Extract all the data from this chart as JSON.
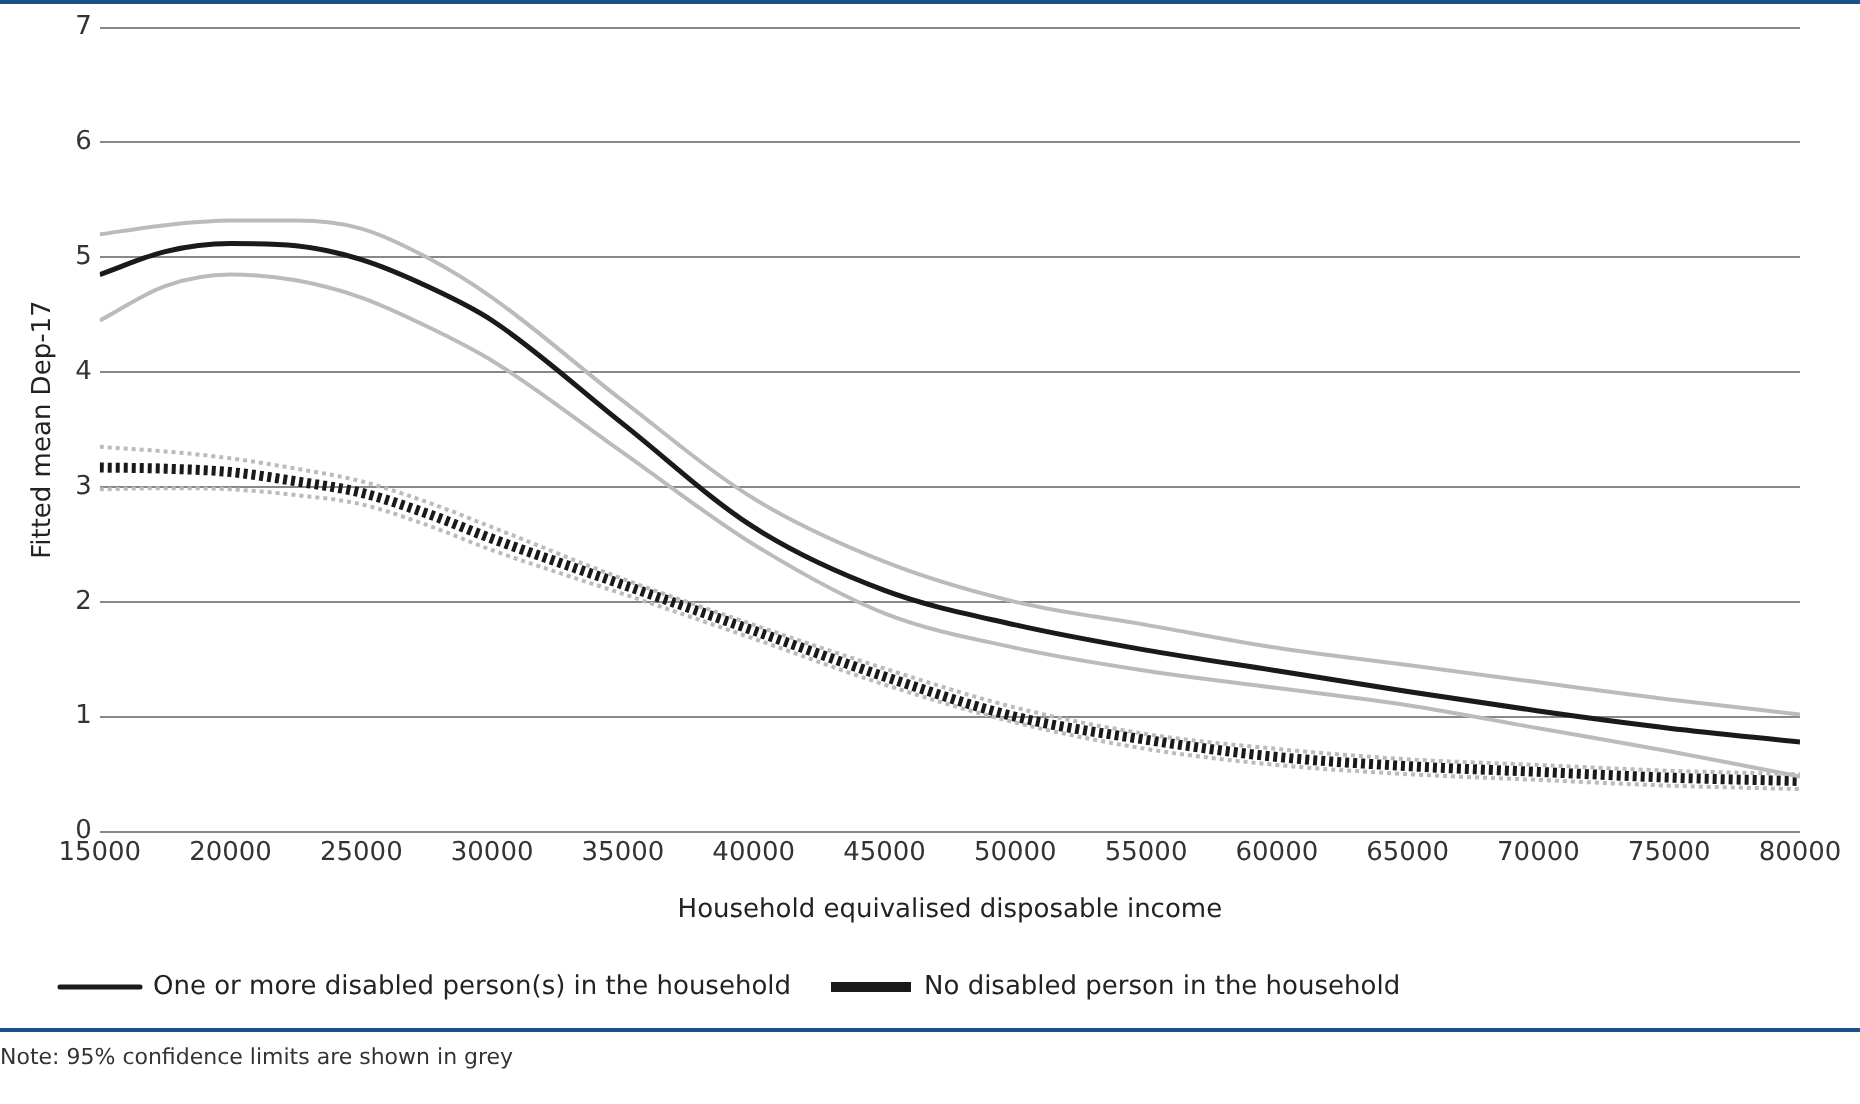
{
  "chart_data": {
    "type": "line",
    "xlabel": "Household equivalised disposable income",
    "ylabel": "Fitted mean Dep-17",
    "x": [
      15000,
      17500,
      20000,
      22500,
      25000,
      27500,
      30000,
      35000,
      40000,
      45000,
      50000,
      55000,
      60000,
      65000,
      70000,
      75000,
      80000
    ],
    "series": [
      {
        "color": "#bbbbbb",
        "line_style": "solid",
        "values": [
          5.2,
          5.28,
          5.32,
          5.32,
          5.25,
          5.0,
          4.65,
          3.75,
          2.9,
          2.35,
          2.0,
          1.8,
          1.6,
          1.45,
          1.3,
          1.15,
          1.02
        ]
      },
      {
        "color": "#bbbbbb",
        "line_style": "solid",
        "values": [
          4.45,
          4.75,
          4.85,
          4.8,
          4.65,
          4.4,
          4.1,
          3.3,
          2.5,
          1.9,
          1.6,
          1.4,
          1.25,
          1.1,
          0.9,
          0.7,
          0.48
        ]
      },
      {
        "color": "#bbbbbb",
        "line_style": "dotted",
        "values": [
          3.35,
          3.31,
          3.25,
          3.16,
          3.05,
          2.87,
          2.65,
          2.2,
          1.8,
          1.42,
          1.08,
          0.85,
          0.72,
          0.63,
          0.58,
          0.53,
          0.5
        ]
      },
      {
        "color": "#bbbbbb",
        "line_style": "dotted",
        "values": [
          2.98,
          2.99,
          2.98,
          2.93,
          2.85,
          2.67,
          2.45,
          2.07,
          1.68,
          1.28,
          0.95,
          0.72,
          0.58,
          0.5,
          0.45,
          0.4,
          0.37
        ]
      },
      {
        "name": "One or more disabled person(s) in the household",
        "color": "#1a1a1a",
        "line_style": "solid",
        "values": [
          4.85,
          5.05,
          5.12,
          5.1,
          4.98,
          4.75,
          4.45,
          3.55,
          2.65,
          2.1,
          1.8,
          1.58,
          1.4,
          1.22,
          1.05,
          0.9,
          0.78
        ]
      },
      {
        "name": "No disabled person in the household",
        "color": "#1a1a1a",
        "line_style": "dotted",
        "values": [
          3.17,
          3.16,
          3.13,
          3.05,
          2.95,
          2.77,
          2.55,
          2.15,
          1.75,
          1.35,
          1.0,
          0.8,
          0.65,
          0.57,
          0.52,
          0.47,
          0.44
        ]
      }
    ],
    "xlim": [
      15000,
      80000
    ],
    "xticks": [
      15000,
      20000,
      25000,
      30000,
      35000,
      40000,
      45000,
      50000,
      55000,
      60000,
      65000,
      70000,
      75000,
      80000
    ],
    "ylim": [
      0,
      7
    ],
    "yticks": [
      0,
      1,
      2,
      3,
      4,
      5,
      6,
      7
    ],
    "grid": "y",
    "legend": "bottom",
    "marker": "none",
    "annotations": [
      "Note: 95% confidence limits are shown in grey"
    ]
  }
}
